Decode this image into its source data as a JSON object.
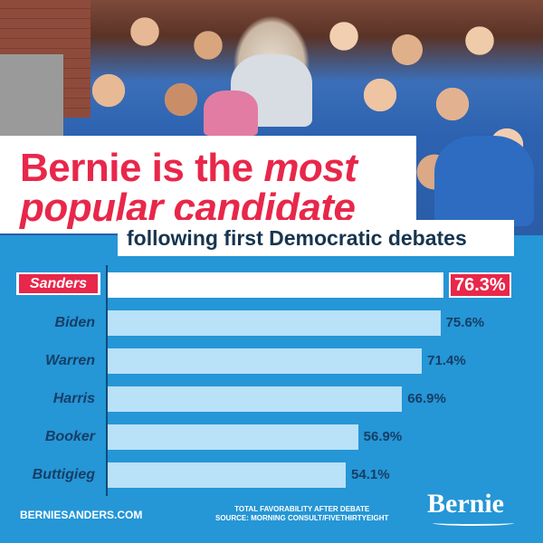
{
  "title": {
    "line1_a": "Bernie is the ",
    "line1_b": "most",
    "line2_a": "popular candidate"
  },
  "subtitle": "following first Democratic debates",
  "chart_data": {
    "type": "bar",
    "orientation": "horizontal",
    "categories": [
      "Sanders",
      "Biden",
      "Warren",
      "Harris",
      "Booker",
      "Buttigieg"
    ],
    "values": [
      76.3,
      75.6,
      71.4,
      66.9,
      56.9,
      54.1
    ],
    "labels": [
      "76.3%",
      "75.6%",
      "71.4%",
      "66.9%",
      "56.9%",
      "54.1%"
    ],
    "highlight": "Sanders",
    "title": "Bernie is the most popular candidate",
    "subtitle": "following first Democratic debates",
    "colors": {
      "highlight_bar": "#ffffff",
      "bar": "#b9e1f8",
      "accent": "#e8274a",
      "background": "#2596d6",
      "text": "#163e66"
    }
  },
  "footer": {
    "site": "BERNIESANDERS.COM",
    "note_line1": "TOTAL FAVORABILITY AFTER DEBATE",
    "note_line2": "SOURCE: MORNING CONSULT/FIVETHIRTYEIGHT",
    "logo": "Bernie"
  }
}
